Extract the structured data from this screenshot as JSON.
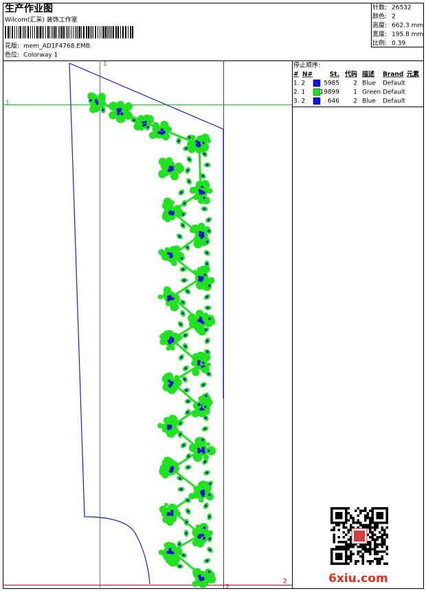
{
  "header": {
    "title": "生产作业图",
    "company": "Wilcom(汇采) 装饰工作室",
    "design_label": "花版:",
    "design": "mem_AD1F4768.EMB",
    "colorway_label": "色位:",
    "colorway": "Colorway 1"
  },
  "info": [
    {
      "label": "针数:",
      "value": "26532"
    },
    {
      "label": "颜色:",
      "value": "2"
    },
    {
      "label": "高度:",
      "value": "662.3 mm"
    },
    {
      "label": "宽度:",
      "value": "195.8 mm"
    },
    {
      "label": "比例:",
      "value": "0.39"
    }
  ],
  "guides": {
    "v1": "1",
    "h1": "1",
    "v2": "2",
    "h2": "2"
  },
  "stop_sequence": {
    "title": "停止顺序:",
    "columns": [
      "#",
      "N#",
      "St.",
      "代码",
      "描述",
      "Brand",
      "元素"
    ],
    "rows": [
      {
        "seq": "1. 2",
        "swatch": "#1010e0",
        "stitches": "5985",
        "code": "2",
        "desc": "Blue",
        "brand": "Default"
      },
      {
        "seq": "2. 1",
        "swatch": "#22e022",
        "stitches": "19899",
        "code": "1",
        "desc": "Green",
        "brand": "Default"
      },
      {
        "seq": "3. 2",
        "swatch": "#1010e0",
        "stitches": "646",
        "code": "2",
        "desc": "Blue",
        "brand": "Default"
      }
    ]
  },
  "watermark": "6xiu.com"
}
